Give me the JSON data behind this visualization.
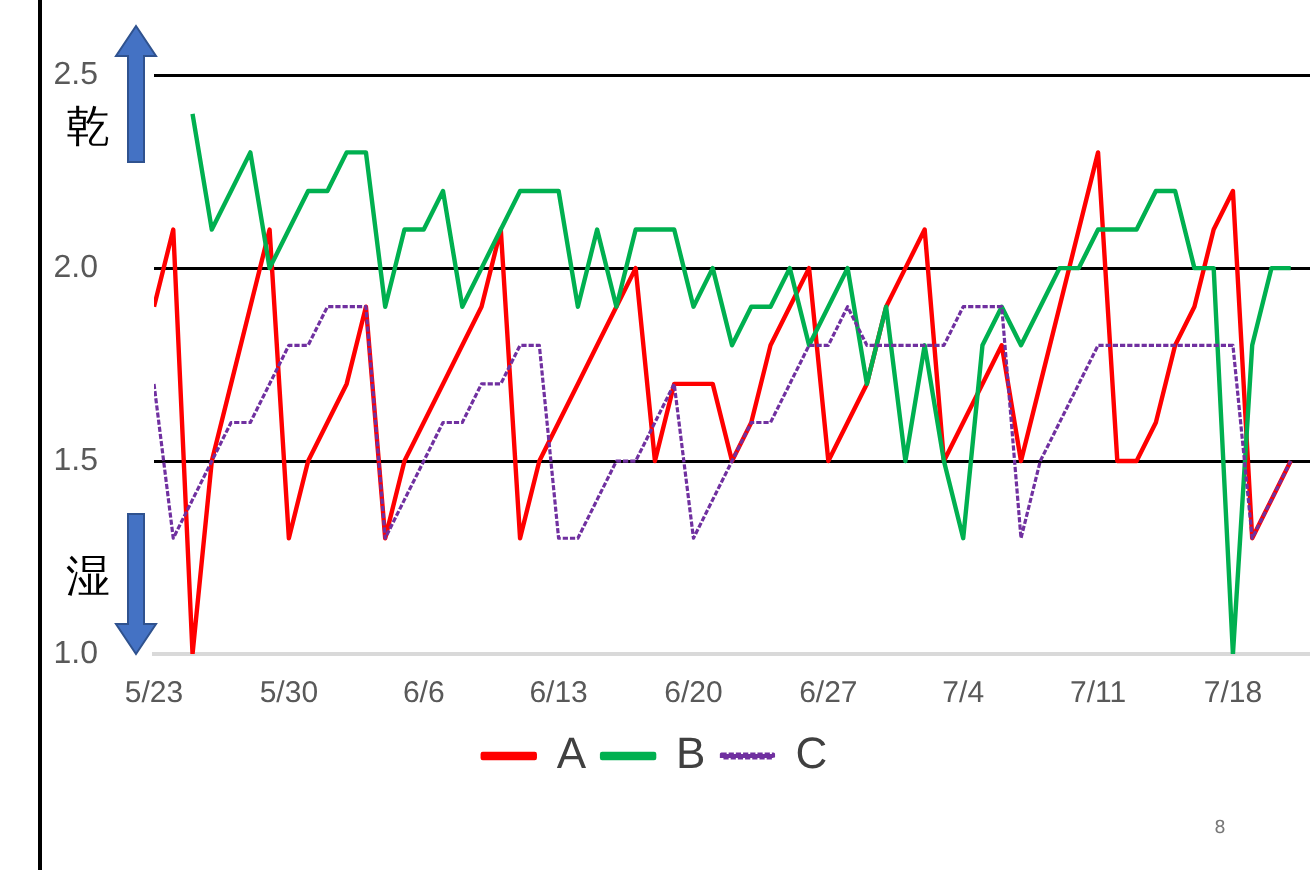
{
  "chart_data": {
    "type": "line",
    "x": [
      "--05-23",
      "--05-24",
      "--05-25",
      "--05-26",
      "--05-27",
      "--05-28",
      "--05-29",
      "--05-30",
      "--05-31",
      "--06-01",
      "--06-02",
      "--06-03",
      "--06-04",
      "--06-05",
      "--06-06",
      "--06-07",
      "--06-08",
      "--06-09",
      "--06-10",
      "--06-11",
      "--06-12",
      "--06-13",
      "--06-14",
      "--06-15",
      "--06-16",
      "--06-17",
      "--06-18",
      "--06-19",
      "--06-20",
      "--06-21",
      "--06-22",
      "--06-23",
      "--06-24",
      "--06-25",
      "--06-26",
      "--06-27",
      "--06-28",
      "--06-29",
      "--06-30",
      "--07-01",
      "--07-02",
      "--07-03",
      "--07-04",
      "--07-05",
      "--07-06",
      "--07-07",
      "--07-08",
      "--07-09",
      "--07-10",
      "--07-11",
      "--07-12",
      "--07-13",
      "--07-14",
      "--07-15",
      "--07-16",
      "--07-17",
      "--07-18",
      "--07-19",
      "--07-20",
      "--07-21"
    ],
    "series": [
      {
        "name": "A",
        "color": "#ff0000",
        "line_style": "solid",
        "values": [
          1.9,
          2.1,
          1.0,
          1.5,
          1.7,
          1.9,
          2.1,
          1.3,
          1.5,
          1.6,
          1.7,
          1.9,
          1.3,
          1.5,
          1.6,
          1.7,
          1.8,
          1.9,
          2.1,
          1.3,
          1.5,
          1.6,
          1.7,
          1.8,
          1.9,
          2.0,
          1.5,
          1.7,
          1.7,
          1.7,
          1.5,
          1.6,
          1.8,
          1.9,
          2.0,
          1.5,
          1.6,
          1.7,
          1.9,
          2.0,
          2.1,
          1.5,
          1.6,
          1.7,
          1.8,
          1.5,
          1.7,
          1.9,
          2.1,
          2.3,
          1.5,
          1.5,
          1.6,
          1.8,
          1.9,
          2.1,
          2.2,
          1.3,
          1.4,
          1.5
        ]
      },
      {
        "name": "B",
        "color": "#00b050",
        "line_style": "solid",
        "values": [
          null,
          null,
          2.4,
          2.1,
          2.2,
          2.3,
          2.0,
          2.1,
          2.2,
          2.2,
          2.3,
          2.3,
          1.9,
          2.1,
          2.1,
          2.2,
          1.9,
          2.0,
          2.1,
          2.2,
          2.2,
          2.2,
          1.9,
          2.1,
          1.9,
          2.1,
          2.1,
          2.1,
          1.9,
          2.0,
          1.8,
          1.9,
          1.9,
          2.0,
          1.8,
          1.9,
          2.0,
          1.7,
          1.9,
          1.5,
          1.8,
          1.5,
          1.3,
          1.8,
          1.9,
          1.8,
          1.9,
          2.0,
          2.0,
          2.1,
          2.1,
          2.1,
          2.2,
          2.2,
          2.0,
          2.0,
          1.0,
          1.8,
          2.0,
          2.0
        ]
      },
      {
        "name": "C",
        "color": "#7030a0",
        "line_style": "dotted",
        "values": [
          1.7,
          1.3,
          1.4,
          1.5,
          1.6,
          1.6,
          1.7,
          1.8,
          1.8,
          1.9,
          1.9,
          1.9,
          1.3,
          1.4,
          1.5,
          1.6,
          1.6,
          1.7,
          1.7,
          1.8,
          1.8,
          1.3,
          1.3,
          1.4,
          1.5,
          1.5,
          1.6,
          1.7,
          1.3,
          1.4,
          1.5,
          1.6,
          1.6,
          1.7,
          1.8,
          1.8,
          1.9,
          1.8,
          1.8,
          1.8,
          1.8,
          1.8,
          1.9,
          1.9,
          1.9,
          1.3,
          1.5,
          1.6,
          1.7,
          1.8,
          1.8,
          1.8,
          1.8,
          1.8,
          1.8,
          1.8,
          1.8,
          1.3,
          1.4,
          1.5
        ]
      }
    ],
    "xlim": [
      "--05-23",
      "--07-22"
    ],
    "xticks": [
      {
        "value": "--05-23",
        "label": "5/23"
      },
      {
        "value": "--05-30",
        "label": "5/30"
      },
      {
        "value": "--06-06",
        "label": "6/6"
      },
      {
        "value": "--06-13",
        "label": "6/13"
      },
      {
        "value": "--06-20",
        "label": "6/20"
      },
      {
        "value": "--06-27",
        "label": "6/27"
      },
      {
        "value": "--07-04",
        "label": "7/4"
      },
      {
        "value": "--07-11",
        "label": "7/11"
      },
      {
        "value": "--07-18",
        "label": "7/18"
      }
    ],
    "ylim": [
      1.0,
      2.5
    ],
    "yticks": [
      {
        "value": 1.0,
        "label": "1.0"
      },
      {
        "value": 1.5,
        "label": "1.5"
      },
      {
        "value": 2.0,
        "label": "2.0"
      },
      {
        "value": 2.5,
        "label": "2.5"
      }
    ],
    "grid": "y",
    "legend": "bottom",
    "marker": "none",
    "annotations": [
      "乾",
      "湿",
      "8"
    ]
  }
}
